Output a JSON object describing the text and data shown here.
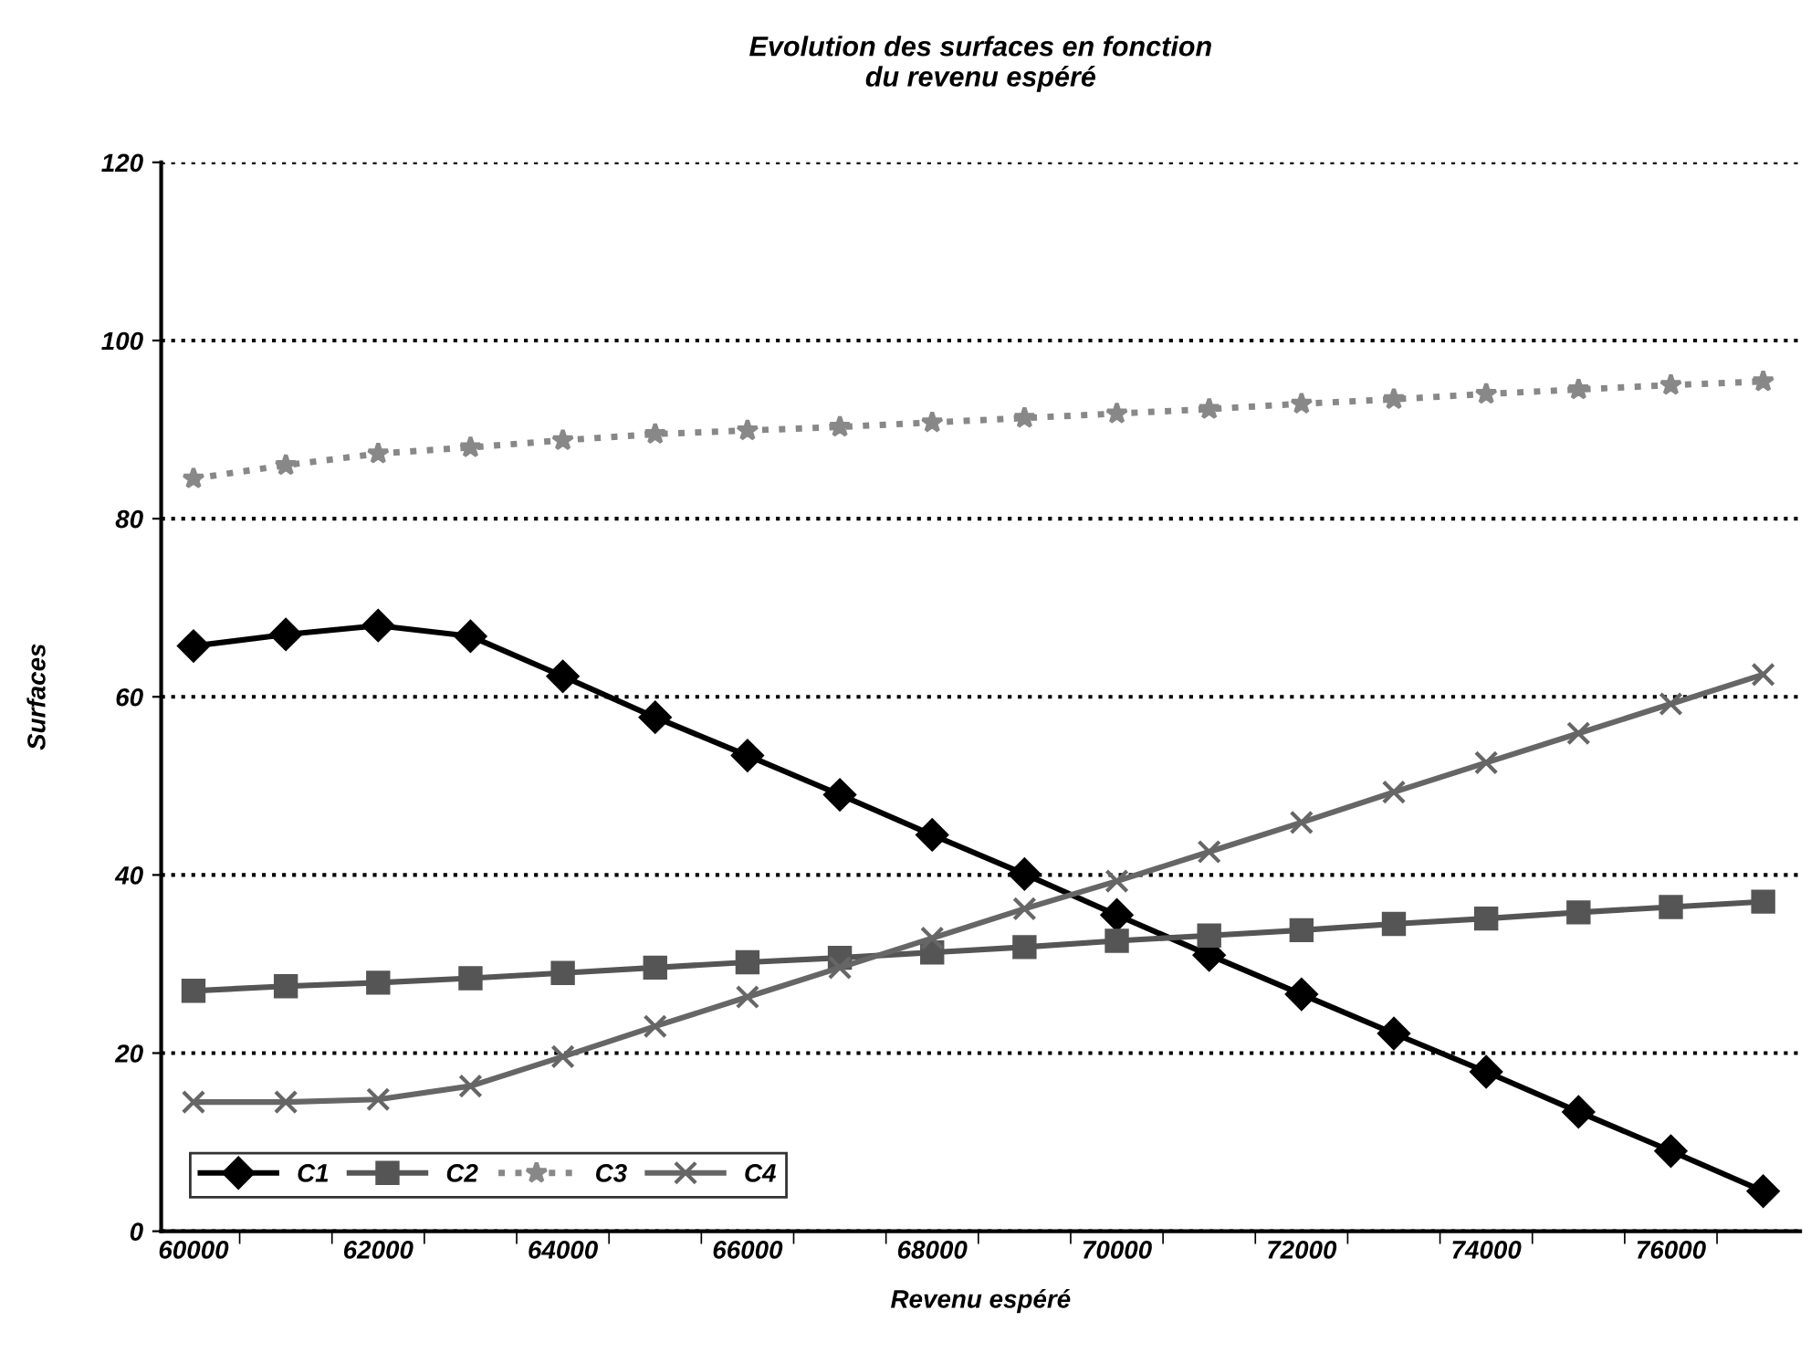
{
  "chart_data": {
    "type": "line",
    "title": "Evolution des surfaces en fonction\ndu revenu espéré",
    "xlabel": "Revenu espéré",
    "ylabel": "Surfaces",
    "categories": [
      "60000",
      null,
      "62000",
      null,
      "64000",
      null,
      "66000",
      null,
      "68000",
      null,
      "70000",
      null,
      "72000",
      null,
      "74000",
      null,
      "76000",
      null
    ],
    "ylim": [
      0,
      120
    ],
    "yticks": [
      0,
      20,
      40,
      60,
      80,
      100,
      120
    ],
    "grid": "y",
    "legend": "bottom left",
    "series": [
      {
        "name": "C1",
        "color": "#000000",
        "marker": "diamond",
        "line_style": "solid",
        "values": [
          65.7,
          67,
          68,
          66.8,
          62.3,
          57.7,
          53.4,
          49,
          44.5,
          40.1,
          35.5,
          31,
          26.6,
          22.2,
          17.9,
          13.4,
          9,
          4.5
        ]
      },
      {
        "name": "C2",
        "color": "#555555",
        "marker": "square",
        "line_style": "solid",
        "values": [
          27,
          27.5,
          27.9,
          28.4,
          29,
          29.6,
          30.2,
          30.7,
          31.3,
          31.9,
          32.6,
          33.2,
          33.8,
          34.5,
          35.1,
          35.8,
          36.4,
          37
        ]
      },
      {
        "name": "C3",
        "color": "#888888",
        "marker": "star",
        "line_style": "dotted",
        "values": [
          84.5,
          86,
          87.3,
          88,
          88.8,
          89.5,
          89.9,
          90.3,
          90.8,
          91.3,
          91.8,
          92.3,
          92.9,
          93.4,
          94,
          94.5,
          95,
          95.4
        ]
      },
      {
        "name": "C4",
        "color": "#666666",
        "marker": "cross",
        "line_style": "solid",
        "values": [
          14.5,
          14.5,
          14.8,
          16.3,
          19.6,
          23,
          26.3,
          29.6,
          32.9,
          36.2,
          39.3,
          42.6,
          45.9,
          49.3,
          52.6,
          55.9,
          59.2,
          62.5
        ]
      }
    ]
  }
}
